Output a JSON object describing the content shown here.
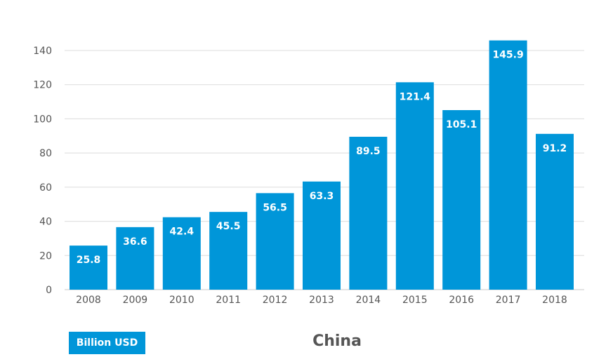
{
  "chart_data": {
    "type": "bar",
    "title": "China",
    "unit_label": "Billion USD",
    "categories": [
      "2008",
      "2009",
      "2010",
      "2011",
      "2012",
      "2013",
      "2014",
      "2015",
      "2016",
      "2017",
      "2018"
    ],
    "values": [
      25.8,
      36.6,
      42.4,
      45.5,
      56.5,
      63.3,
      89.5,
      121.4,
      105.1,
      145.9,
      91.2
    ],
    "value_labels": [
      "25.8",
      "36.6",
      "42.4",
      "45.5",
      "56.5",
      "63.3",
      "89.5",
      "121.4",
      "105.1",
      "145.9",
      "91.2"
    ],
    "ylim": [
      0,
      140
    ],
    "yticks": [
      "0",
      "20",
      "40",
      "60",
      "80",
      "100",
      "120",
      "140"
    ],
    "grid": true,
    "colors": {
      "bar": "#0096d9",
      "grid": "#dcdcdc",
      "text": "#555555"
    }
  }
}
